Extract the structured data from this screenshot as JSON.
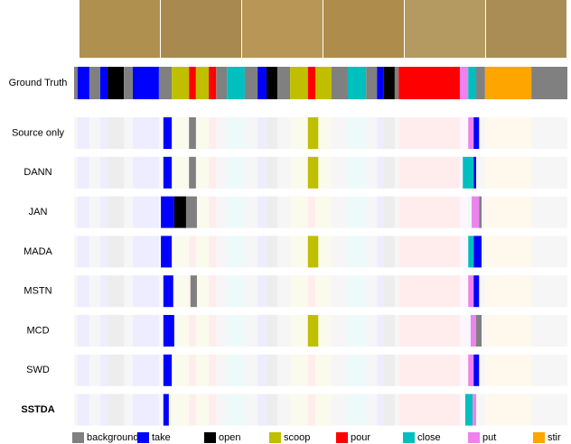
{
  "classes": [
    {
      "name": "background",
      "color": "#808080"
    },
    {
      "name": "take",
      "color": "#0000ff"
    },
    {
      "name": "open",
      "color": "#000000"
    },
    {
      "name": "scoop",
      "color": "#bfbf00"
    },
    {
      "name": "pour",
      "color": "#ff0000"
    },
    {
      "name": "close",
      "color": "#00bfbf"
    },
    {
      "name": "put",
      "color": "#ee82ee"
    },
    {
      "name": "stir",
      "color": "#ffa500"
    }
  ],
  "ground_truth": {
    "label": "Ground Truth",
    "segments": [
      {
        "class": 0,
        "start": 0,
        "end": 0.7
      },
      {
        "class": 1,
        "start": 0.7,
        "end": 3.1
      },
      {
        "class": 0,
        "start": 3.1,
        "end": 5.3
      },
      {
        "class": 1,
        "start": 5.3,
        "end": 6.8
      },
      {
        "class": 2,
        "start": 6.8,
        "end": 10.1
      },
      {
        "class": 0,
        "start": 10.1,
        "end": 11.9
      },
      {
        "class": 1,
        "start": 11.9,
        "end": 17.2
      },
      {
        "class": 0,
        "start": 17.2,
        "end": 19.8
      },
      {
        "class": 3,
        "start": 19.8,
        "end": 23.3
      },
      {
        "class": 4,
        "start": 23.3,
        "end": 24.7
      },
      {
        "class": 3,
        "start": 24.7,
        "end": 27.3
      },
      {
        "class": 4,
        "start": 27.3,
        "end": 28.8
      },
      {
        "class": 0,
        "start": 28.8,
        "end": 31.0
      },
      {
        "class": 5,
        "start": 31.0,
        "end": 34.6
      },
      {
        "class": 0,
        "start": 34.6,
        "end": 37.2
      },
      {
        "class": 1,
        "start": 37.2,
        "end": 39.0
      },
      {
        "class": 2,
        "start": 39.0,
        "end": 41.2
      },
      {
        "class": 0,
        "start": 41.2,
        "end": 43.8
      },
      {
        "class": 3,
        "start": 43.8,
        "end": 47.4
      },
      {
        "class": 4,
        "start": 47.4,
        "end": 48.9
      },
      {
        "class": 3,
        "start": 48.9,
        "end": 52.2
      },
      {
        "class": 0,
        "start": 52.2,
        "end": 55.5
      },
      {
        "class": 5,
        "start": 55.5,
        "end": 59.2
      },
      {
        "class": 0,
        "start": 59.2,
        "end": 61.4
      },
      {
        "class": 1,
        "start": 61.4,
        "end": 62.8
      },
      {
        "class": 2,
        "start": 62.8,
        "end": 65.0
      },
      {
        "class": 0,
        "start": 65.0,
        "end": 65.8
      },
      {
        "class": 4,
        "start": 65.8,
        "end": 78.2
      },
      {
        "class": 6,
        "start": 78.2,
        "end": 79.9
      },
      {
        "class": 5,
        "start": 79.9,
        "end": 81.5
      },
      {
        "class": 0,
        "start": 81.5,
        "end": 83.3
      },
      {
        "class": 7,
        "start": 83.3,
        "end": 92.7
      },
      {
        "class": 0,
        "start": 92.7,
        "end": 100
      }
    ]
  },
  "rows": [
    {
      "label": "Source only",
      "segments": [
        {
          "class": 1,
          "start": 18.1,
          "end": 19.8
        },
        {
          "class": 0,
          "start": 23.3,
          "end": 24.7
        },
        {
          "class": 3,
          "start": 47.4,
          "end": 49.5
        },
        {
          "class": 6,
          "start": 79.9,
          "end": 81.0
        },
        {
          "class": 1,
          "start": 81.0,
          "end": 82.1
        }
      ]
    },
    {
      "label": "DANN",
      "segments": [
        {
          "class": 1,
          "start": 18.1,
          "end": 19.8
        },
        {
          "class": 0,
          "start": 23.3,
          "end": 24.7
        },
        {
          "class": 3,
          "start": 47.4,
          "end": 49.5
        },
        {
          "class": 5,
          "start": 78.8,
          "end": 81.0
        },
        {
          "class": 1,
          "start": 81.0,
          "end": 81.5
        }
      ]
    },
    {
      "label": "JAN",
      "segments": [
        {
          "class": 1,
          "start": 17.6,
          "end": 20.3
        },
        {
          "class": 2,
          "start": 20.3,
          "end": 22.7
        },
        {
          "class": 0,
          "start": 22.7,
          "end": 24.9
        },
        {
          "class": 6,
          "start": 80.6,
          "end": 82.1
        },
        {
          "class": 0,
          "start": 82.1,
          "end": 82.6
        }
      ]
    },
    {
      "label": "MADA",
      "segments": [
        {
          "class": 1,
          "start": 17.6,
          "end": 19.8
        },
        {
          "class": 3,
          "start": 47.4,
          "end": 49.5
        },
        {
          "class": 5,
          "start": 79.9,
          "end": 81.0
        },
        {
          "class": 1,
          "start": 81.0,
          "end": 82.6
        }
      ]
    },
    {
      "label": "MSTN",
      "segments": [
        {
          "class": 1,
          "start": 18.1,
          "end": 20.1
        },
        {
          "class": 0,
          "start": 23.6,
          "end": 24.9
        },
        {
          "class": 6,
          "start": 79.9,
          "end": 81.0
        },
        {
          "class": 1,
          "start": 81.0,
          "end": 82.1
        }
      ]
    },
    {
      "label": "MCD",
      "segments": [
        {
          "class": 1,
          "start": 18.1,
          "end": 20.3
        },
        {
          "class": 3,
          "start": 47.4,
          "end": 49.5
        },
        {
          "class": 6,
          "start": 80.4,
          "end": 81.5
        },
        {
          "class": 0,
          "start": 81.5,
          "end": 82.6
        }
      ]
    },
    {
      "label": "SWD",
      "segments": [
        {
          "class": 1,
          "start": 18.1,
          "end": 19.8
        },
        {
          "class": 6,
          "start": 79.9,
          "end": 81.0
        },
        {
          "class": 1,
          "start": 81.0,
          "end": 82.1
        }
      ]
    },
    {
      "label": "SSTDA",
      "segments": [
        {
          "class": 1,
          "start": 18.1,
          "end": 19.2
        },
        {
          "class": 5,
          "start": 79.3,
          "end": 80.8
        },
        {
          "class": 6,
          "start": 80.8,
          "end": 81.5
        }
      ]
    }
  ]
}
